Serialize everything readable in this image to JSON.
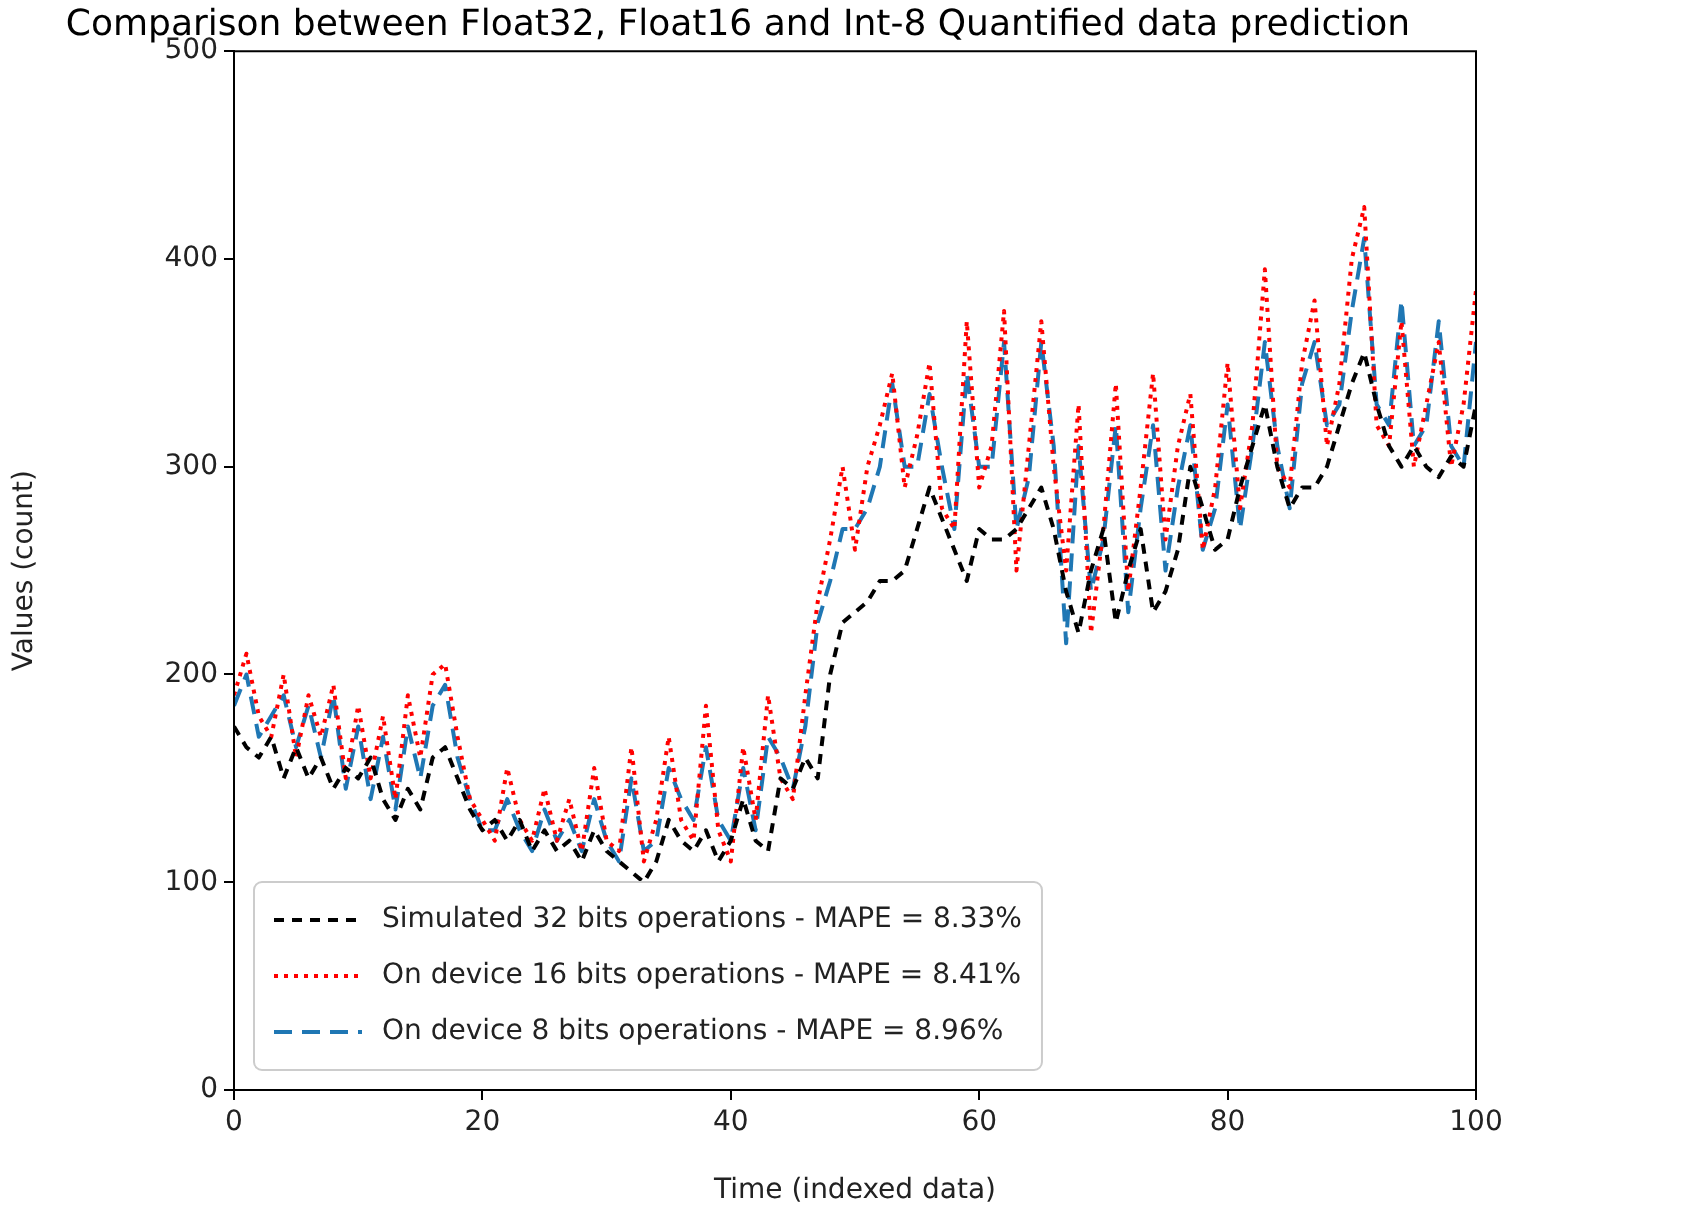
{
  "chart_data": {
    "type": "line",
    "title": "Comparison between Float32, Float16 and Int-8 Quantified data prediction",
    "xlabel": "Time (indexed data)",
    "ylabel": "Values (count)",
    "x": [
      0,
      1,
      2,
      3,
      4,
      5,
      6,
      7,
      8,
      9,
      10,
      11,
      12,
      13,
      14,
      15,
      16,
      17,
      18,
      19,
      20,
      21,
      22,
      23,
      24,
      25,
      26,
      27,
      28,
      29,
      30,
      31,
      32,
      33,
      34,
      35,
      36,
      37,
      38,
      39,
      40,
      41,
      42,
      43,
      44,
      45,
      46,
      47,
      48,
      49,
      50,
      51,
      52,
      53,
      54,
      55,
      56,
      57,
      58,
      59,
      60,
      61,
      62,
      63,
      64,
      65,
      66,
      67,
      68,
      69,
      70,
      71,
      72,
      73,
      74,
      75,
      76,
      77,
      78,
      79,
      80,
      81,
      82,
      83,
      84,
      85,
      86,
      87,
      88,
      89,
      90,
      91,
      92,
      93,
      94,
      95,
      96,
      97,
      98,
      99,
      100
    ],
    "series": [
      {
        "name": "Simulated 32 bits operations - MAPE = 8.33%",
        "color": "#000000",
        "line_style": "dashed",
        "values": [
          175,
          165,
          160,
          170,
          150,
          165,
          150,
          160,
          145,
          155,
          150,
          160,
          140,
          130,
          145,
          135,
          160,
          165,
          150,
          135,
          125,
          130,
          120,
          130,
          115,
          125,
          115,
          120,
          110,
          125,
          115,
          110,
          105,
          100,
          110,
          130,
          120,
          115,
          125,
          110,
          120,
          140,
          120,
          115,
          150,
          145,
          160,
          150,
          200,
          225,
          230,
          235,
          245,
          245,
          250,
          270,
          290,
          275,
          260,
          245,
          270,
          265,
          265,
          270,
          280,
          290,
          270,
          240,
          220,
          250,
          270,
          225,
          250,
          270,
          230,
          240,
          260,
          300,
          280,
          260,
          265,
          290,
          310,
          330,
          300,
          280,
          290,
          290,
          300,
          320,
          340,
          355,
          330,
          310,
          300,
          310,
          300,
          295,
          305,
          300,
          330
        ]
      },
      {
        "name": "On device 16 bits operations - MAPE = 8.41%",
        "color": "#ff0000",
        "line_style": "dotted",
        "values": [
          190,
          210,
          180,
          170,
          200,
          160,
          190,
          170,
          195,
          150,
          185,
          150,
          180,
          140,
          190,
          160,
          200,
          205,
          170,
          140,
          130,
          120,
          155,
          130,
          120,
          145,
          120,
          140,
          115,
          155,
          120,
          115,
          165,
          110,
          130,
          170,
          130,
          120,
          185,
          125,
          110,
          165,
          130,
          190,
          150,
          140,
          190,
          235,
          265,
          300,
          260,
          300,
          320,
          345,
          290,
          315,
          350,
          280,
          270,
          370,
          290,
          310,
          375,
          250,
          310,
          370,
          300,
          250,
          330,
          220,
          270,
          340,
          240,
          290,
          345,
          265,
          310,
          335,
          260,
          290,
          350,
          280,
          320,
          395,
          300,
          290,
          350,
          380,
          310,
          340,
          400,
          425,
          320,
          310,
          370,
          300,
          330,
          360,
          300,
          330,
          385
        ]
      },
      {
        "name": "On device 8 bits operations - MAPE = 8.96%",
        "color": "#1f77b4",
        "line_style": "longdash",
        "values": [
          185,
          200,
          170,
          180,
          190,
          165,
          185,
          160,
          190,
          145,
          175,
          140,
          170,
          135,
          175,
          150,
          185,
          195,
          160,
          140,
          125,
          125,
          140,
          125,
          115,
          135,
          120,
          130,
          115,
          140,
          120,
          110,
          150,
          115,
          120,
          155,
          140,
          130,
          165,
          130,
          120,
          155,
          125,
          170,
          160,
          145,
          175,
          225,
          245,
          270,
          270,
          280,
          300,
          340,
          300,
          300,
          335,
          300,
          270,
          345,
          300,
          300,
          360,
          270,
          295,
          360,
          310,
          215,
          310,
          240,
          265,
          320,
          230,
          280,
          320,
          250,
          290,
          320,
          260,
          280,
          330,
          270,
          310,
          360,
          310,
          280,
          340,
          360,
          320,
          330,
          375,
          410,
          330,
          320,
          380,
          310,
          320,
          370,
          310,
          300,
          360
        ]
      }
    ],
    "xlim": [
      0,
      100
    ],
    "ylim": [
      0,
      500
    ],
    "xticks": [
      0,
      20,
      40,
      60,
      80,
      100
    ],
    "yticks": [
      0,
      100,
      200,
      300,
      400,
      500
    ],
    "grid": false,
    "legend": "bottom left"
  }
}
